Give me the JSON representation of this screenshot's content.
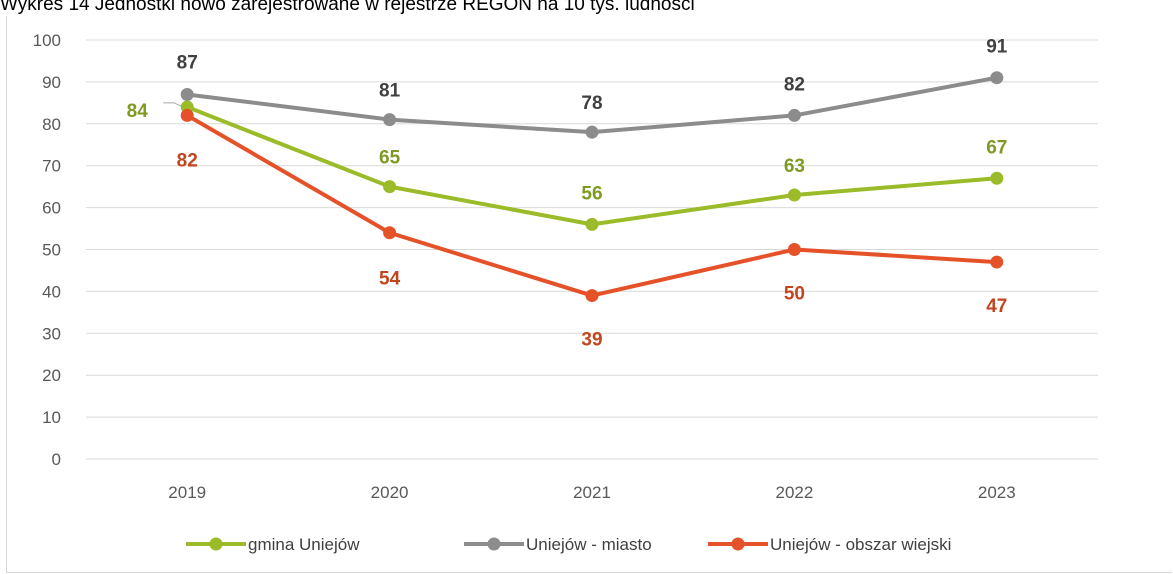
{
  "title": "Wykres 14 Jednostki nowo zarejestrowane w rejestrze REGON na 10 tys. ludności",
  "chart_data": {
    "type": "line",
    "title": "Wykres 14 Jednostki nowo zarejestrowane w rejestrze REGON na 10 tys. ludności",
    "categories": [
      "2019",
      "2020",
      "2021",
      "2022",
      "2023"
    ],
    "ylim": [
      0,
      100
    ],
    "yticks": [
      0,
      10,
      20,
      30,
      40,
      50,
      60,
      70,
      80,
      90,
      100
    ],
    "ytick_labels": [
      "0",
      "10",
      "20",
      "30",
      "40",
      "50",
      "60",
      "70",
      "80",
      "90",
      "100"
    ],
    "grid": true,
    "legend_position": "bottom",
    "series": [
      {
        "name": "gmina Uniejów",
        "color": "#9bbb29",
        "label_color": "#7f9a22",
        "values": [
          84,
          65,
          56,
          63,
          67
        ],
        "labels": [
          "84",
          "65",
          "56",
          "63",
          "67"
        ]
      },
      {
        "name": "Uniejów - miasto",
        "color": "#8c8c8c",
        "label_color": "#404040",
        "values": [
          87,
          81,
          78,
          82,
          91
        ],
        "labels": [
          "87",
          "81",
          "78",
          "82",
          "91"
        ]
      },
      {
        "name": "Uniejów - obszar wiejski",
        "color": "#e5522a",
        "label_color": "#c0461f",
        "values": [
          82,
          54,
          39,
          50,
          47
        ],
        "labels": [
          "82",
          "54",
          "39",
          "50",
          "47"
        ]
      }
    ]
  }
}
